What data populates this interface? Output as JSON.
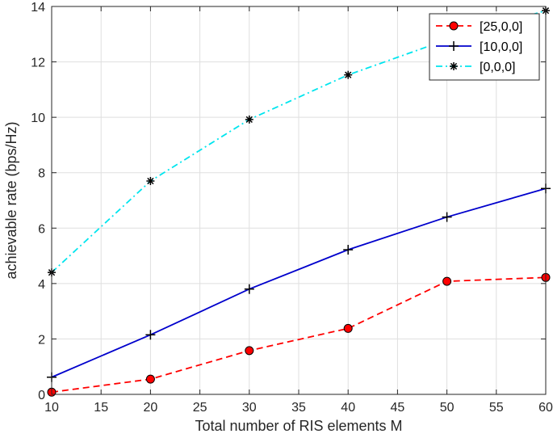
{
  "chart_data": {
    "type": "line",
    "xlabel": "Total number of RIS elements M",
    "ylabel": "achievable rate (bps/Hz)",
    "xlim": [
      10,
      60
    ],
    "ylim": [
      0,
      14
    ],
    "xticks": [
      "10",
      "15",
      "20",
      "25",
      "30",
      "35",
      "40",
      "45",
      "50",
      "55",
      "60"
    ],
    "yticks": [
      "0",
      "2",
      "4",
      "6",
      "8",
      "10",
      "12",
      "14"
    ],
    "grid": true,
    "legend_position": "top-right",
    "series": [
      {
        "name": "[25,0,0]",
        "color": "#ff0000",
        "line_style": "dashed",
        "marker": "circle",
        "x": [
          10,
          20,
          30,
          40,
          50,
          60
        ],
        "y": [
          0.08,
          0.55,
          1.58,
          2.38,
          4.08,
          4.22
        ]
      },
      {
        "name": "[10,0,0]",
        "color": "#0000cc",
        "line_style": "solid",
        "marker": "plus",
        "x": [
          10,
          20,
          30,
          40,
          50,
          60
        ],
        "y": [
          0.62,
          2.15,
          3.8,
          5.22,
          6.4,
          7.43
        ]
      },
      {
        "name": "[0,0,0]",
        "color": "#00e5ee",
        "line_style": "dash-dot",
        "marker": "asterisk",
        "x": [
          10,
          20,
          30,
          40,
          50,
          60
        ],
        "y": [
          4.4,
          7.7,
          9.92,
          11.53,
          12.8,
          13.85
        ]
      }
    ]
  }
}
